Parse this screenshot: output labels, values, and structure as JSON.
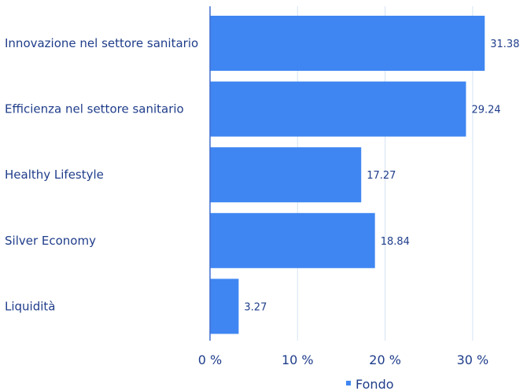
{
  "chart_data": {
    "type": "bar",
    "orientation": "horizontal",
    "categories": [
      "Innovazione nel settore sanitario",
      "Efficienza nel settore sanitario",
      "Healthy Lifestyle",
      "Silver Economy",
      "Liquidità"
    ],
    "series": [
      {
        "name": "Fondo",
        "values": [
          31.38,
          29.24,
          17.27,
          18.84,
          3.27
        ]
      }
    ],
    "value_labels": [
      "31.38",
      "29.24",
      "17.27",
      "18.84",
      "3.27"
    ],
    "x_ticks": [
      "0 %",
      "10 %",
      "20 %",
      "30 %"
    ],
    "xlim": [
      0,
      35
    ],
    "grid": true,
    "legend_position": "bottom",
    "colors": {
      "bar": "#3f86f2",
      "text": "#1f3d8a",
      "axis": "#3f6fd1",
      "grid": "#d6e4f5"
    }
  }
}
